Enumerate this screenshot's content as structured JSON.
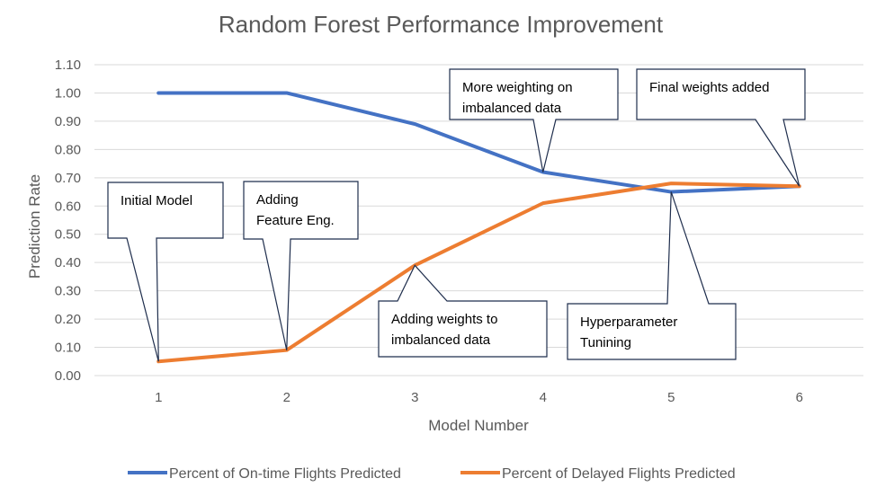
{
  "chart_data": {
    "type": "line",
    "title": "Random Forest Performance Improvement",
    "xlabel": "Model Number",
    "ylabel": "Prediction Rate",
    "x": [
      1,
      2,
      3,
      4,
      5,
      6
    ],
    "ylim": [
      0,
      1.1
    ],
    "yticks": [
      "0.00",
      "0.10",
      "0.20",
      "0.30",
      "0.40",
      "0.50",
      "0.60",
      "0.70",
      "0.80",
      "0.90",
      "1.00",
      "1.10"
    ],
    "xticks": [
      "1",
      "2",
      "3",
      "4",
      "5",
      "6"
    ],
    "grid": "horizontal",
    "legend_position": "bottom",
    "series": [
      {
        "name": "Percent of On-time Flights Predicted",
        "color": "#4472c4",
        "values": [
          1.0,
          1.0,
          0.89,
          0.72,
          0.65,
          0.67
        ]
      },
      {
        "name": "Percent of Delayed Flights Predicted",
        "color": "#ed7d31",
        "values": [
          0.05,
          0.09,
          0.39,
          0.61,
          0.68,
          0.67
        ]
      }
    ],
    "annotations": [
      {
        "text_lines": [
          "Initial Model"
        ],
        "model": 1,
        "series": 1
      },
      {
        "text_lines": [
          "Adding",
          "Feature Eng."
        ],
        "model": 2,
        "series": 1
      },
      {
        "text_lines": [
          "Adding weights to",
          "imbalanced data"
        ],
        "model": 3,
        "series": 1
      },
      {
        "text_lines": [
          "More weighting on",
          "imbalanced data"
        ],
        "model": 4,
        "series": 0
      },
      {
        "text_lines": [
          "Hyperparameter",
          "Tunining"
        ],
        "model": 5,
        "series": 0
      },
      {
        "text_lines": [
          "Final weights added"
        ],
        "model": 6,
        "series": 0
      }
    ]
  }
}
